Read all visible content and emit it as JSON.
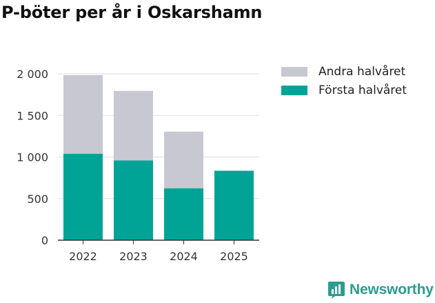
{
  "header": {
    "title": "P-böter per år i Oskarshamn"
  },
  "colors": {
    "forsta": "#00a496",
    "andra": "#c8c8d2",
    "gridline": "#dddddd",
    "axis": "#333333",
    "brand": "#2a9d8f"
  },
  "legend": {
    "items": [
      {
        "label": "Andra halvåret",
        "color": "#c8c8d2"
      },
      {
        "label": "Första halvåret",
        "color": "#00a496"
      }
    ]
  },
  "chart_data": {
    "type": "bar",
    "stacked": true,
    "categories": [
      "2022",
      "2023",
      "2024",
      "2025"
    ],
    "series": [
      {
        "name": "Första halvåret",
        "values": [
          1040,
          960,
          625,
          835
        ]
      },
      {
        "name": "Andra halvåret",
        "values": [
          945,
          835,
          680,
          0
        ]
      }
    ],
    "ylim": [
      0,
      2000
    ],
    "yticks": [
      0,
      500,
      1000,
      1500,
      2000
    ],
    "ytick_labels": [
      "0",
      "500",
      "1 000",
      "1 500",
      "2 000"
    ],
    "grid": true,
    "legend_position": "top-right"
  },
  "brand": {
    "name": "Newsworthy",
    "icon": "newsworthy-chart-icon"
  }
}
